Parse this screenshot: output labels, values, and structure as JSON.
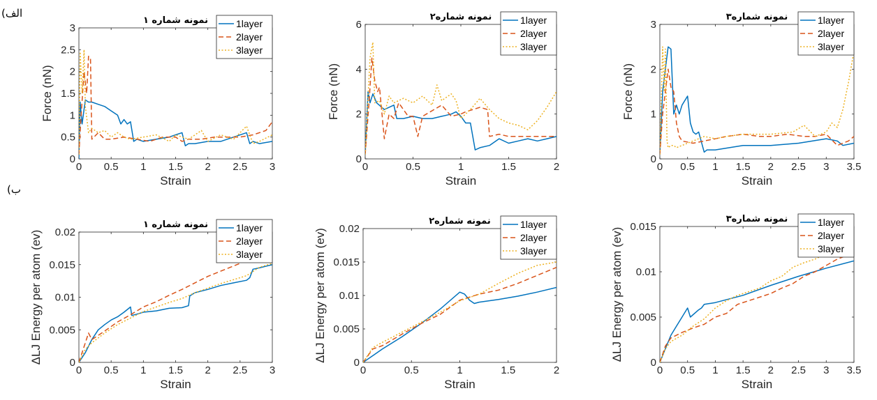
{
  "row_labels": {
    "a": "(الف",
    "b": "(ب"
  },
  "colors": {
    "layer1": "#0072BD",
    "layer2": "#D95319",
    "layer3": "#EDB120"
  },
  "chart_data": [
    {
      "type": "line",
      "title": "نمونه شماره ۱",
      "xlabel": "Strain",
      "ylabel": "Force (nN)",
      "xlim": [
        0,
        3
      ],
      "ylim": [
        0,
        3
      ],
      "xticks": [
        "0",
        "0.5",
        "1",
        "1.5",
        "2",
        "2.5",
        "3"
      ],
      "xtickvals": [
        0,
        0.5,
        1,
        1.5,
        2,
        2.5,
        3
      ],
      "yticks": [
        "0",
        "0.5",
        "1",
        "1.5",
        "2",
        "2.5",
        "3"
      ],
      "ytickvals": [
        0,
        0.5,
        1,
        1.5,
        2,
        2.5,
        3
      ],
      "legend": "top-right",
      "series": [
        {
          "name": "1layer",
          "x": [
            0,
            0.02,
            0.05,
            0.1,
            0.15,
            0.2,
            0.3,
            0.4,
            0.5,
            0.6,
            0.65,
            0.7,
            0.75,
            0.8,
            0.85,
            0.9,
            1.0,
            1.2,
            1.4,
            1.6,
            1.65,
            1.7,
            1.8,
            2.0,
            2.2,
            2.4,
            2.6,
            2.65,
            2.7,
            2.8,
            3.0
          ],
          "y": [
            0,
            1.3,
            0.8,
            1.35,
            1.3,
            1.3,
            1.25,
            1.2,
            1.1,
            1.0,
            0.8,
            0.9,
            0.8,
            0.85,
            0.4,
            0.45,
            0.4,
            0.45,
            0.5,
            0.6,
            0.3,
            0.35,
            0.35,
            0.4,
            0.4,
            0.5,
            0.6,
            0.35,
            0.4,
            0.35,
            0.4
          ]
        },
        {
          "name": "2layer",
          "x": [
            0,
            0.03,
            0.08,
            0.12,
            0.15,
            0.18,
            0.2,
            0.3,
            0.4,
            0.5,
            0.7,
            0.9,
            1.1,
            1.3,
            1.5,
            1.6,
            1.7,
            1.9,
            2.1,
            2.3,
            2.5,
            2.7,
            2.9,
            3.0
          ],
          "y": [
            0.1,
            0.9,
            2.0,
            1.5,
            2.35,
            2.3,
            0.45,
            0.6,
            0.45,
            0.45,
            0.5,
            0.45,
            0.4,
            0.5,
            0.5,
            0.4,
            0.45,
            0.45,
            0.5,
            0.5,
            0.5,
            0.55,
            0.65,
            0.85
          ]
        },
        {
          "name": "3layer",
          "x": [
            0,
            0.02,
            0.05,
            0.08,
            0.1,
            0.15,
            0.2,
            0.3,
            0.4,
            0.5,
            0.6,
            0.7,
            0.8,
            1.0,
            1.2,
            1.4,
            1.5,
            1.7,
            1.9,
            2.0,
            2.2,
            2.4,
            2.5,
            2.6,
            2.7,
            2.8,
            3.0
          ],
          "y": [
            0.1,
            2.45,
            1.5,
            2.5,
            1.2,
            0.6,
            0.7,
            0.6,
            0.65,
            0.5,
            0.6,
            0.5,
            0.45,
            0.5,
            0.55,
            0.4,
            0.55,
            0.45,
            0.65,
            0.4,
            0.55,
            0.45,
            0.6,
            0.75,
            0.35,
            0.4,
            0.55
          ]
        }
      ]
    },
    {
      "type": "line",
      "title": "نمونه شماره۲",
      "xlabel": "Strain",
      "ylabel": "Force (nN)",
      "xlim": [
        0,
        2
      ],
      "ylim": [
        0,
        6
      ],
      "xticks": [
        "0",
        "0.5",
        "1",
        "1.5",
        "2"
      ],
      "xtickvals": [
        0,
        0.5,
        1,
        1.5,
        2
      ],
      "yticks": [
        "0",
        "2",
        "4",
        "6"
      ],
      "ytickvals": [
        0,
        2,
        4,
        6
      ],
      "legend": "top-right",
      "series": [
        {
          "name": "1layer",
          "x": [
            0,
            0.03,
            0.05,
            0.08,
            0.12,
            0.2,
            0.3,
            0.33,
            0.4,
            0.5,
            0.6,
            0.7,
            0.8,
            0.9,
            0.95,
            1.0,
            1.05,
            1.1,
            1.15,
            1.2,
            1.3,
            1.4,
            1.5,
            1.6,
            1.7,
            1.8,
            1.9,
            2.0
          ],
          "y": [
            0.2,
            3.0,
            2.5,
            2.9,
            2.5,
            2.2,
            2.4,
            1.8,
            1.8,
            1.9,
            1.8,
            1.8,
            1.9,
            2.0,
            2.1,
            1.9,
            1.6,
            1.6,
            0.4,
            0.5,
            0.6,
            0.9,
            0.7,
            0.8,
            0.9,
            0.8,
            0.9,
            1.0
          ]
        },
        {
          "name": "2layer",
          "x": [
            0,
            0.04,
            0.07,
            0.1,
            0.13,
            0.15,
            0.2,
            0.25,
            0.3,
            0.35,
            0.45,
            0.5,
            0.55,
            0.6,
            0.8,
            0.9,
            1.0,
            1.05,
            1.2,
            1.28,
            1.3,
            1.4,
            1.5,
            1.6,
            1.8,
            2.0
          ],
          "y": [
            0.2,
            2.5,
            4.5,
            3.5,
            3.0,
            3.2,
            0.9,
            2.0,
            1.8,
            2.5,
            1.9,
            1.9,
            1.0,
            1.9,
            2.4,
            1.9,
            2.0,
            2.1,
            2.3,
            2.2,
            1.0,
            1.1,
            1.0,
            1.0,
            1.0,
            1.0
          ]
        },
        {
          "name": "3layer",
          "x": [
            0,
            0.05,
            0.08,
            0.1,
            0.15,
            0.2,
            0.25,
            0.3,
            0.4,
            0.5,
            0.6,
            0.7,
            0.75,
            0.8,
            0.9,
            0.95,
            1.0,
            1.1,
            1.2,
            1.3,
            1.4,
            1.5,
            1.6,
            1.7,
            1.8,
            1.9,
            2.0
          ],
          "y": [
            0.2,
            4.5,
            5.2,
            2.5,
            2.6,
            2.0,
            2.8,
            2.5,
            2.7,
            2.5,
            2.8,
            2.4,
            3.3,
            2.6,
            2.9,
            2.6,
            1.8,
            2.2,
            2.7,
            2.2,
            1.8,
            1.6,
            1.5,
            1.3,
            1.7,
            2.3,
            3.0
          ]
        }
      ]
    },
    {
      "type": "line",
      "title": "نمونه شماره۳",
      "xlabel": "Strain",
      "ylabel": "Force (nN)",
      "xlim": [
        0,
        3.5
      ],
      "ylim": [
        0,
        3
      ],
      "xticks": [
        "0",
        "0.5",
        "1",
        "1.5",
        "2",
        "2.5",
        "3",
        "3.5"
      ],
      "xtickvals": [
        0,
        0.5,
        1,
        1.5,
        2,
        2.5,
        3,
        3.5
      ],
      "yticks": [
        "0",
        "1",
        "2",
        "3"
      ],
      "ytickvals": [
        0,
        1,
        2,
        3
      ],
      "legend": "top-right",
      "series": [
        {
          "name": "1layer",
          "x": [
            0,
            0.05,
            0.1,
            0.15,
            0.2,
            0.25,
            0.3,
            0.35,
            0.4,
            0.5,
            0.55,
            0.6,
            0.65,
            0.7,
            0.8,
            0.85,
            1.0,
            1.5,
            2.0,
            2.5,
            3.0,
            3.2,
            3.3,
            3.5
          ],
          "y": [
            0.1,
            1.5,
            2.0,
            2.5,
            2.45,
            1.0,
            1.2,
            1.0,
            1.2,
            1.4,
            0.8,
            0.6,
            0.55,
            0.6,
            0.15,
            0.2,
            0.2,
            0.3,
            0.3,
            0.35,
            0.45,
            0.4,
            0.3,
            0.35
          ]
        },
        {
          "name": "2layer",
          "x": [
            0,
            0.05,
            0.1,
            0.15,
            0.2,
            0.25,
            0.3,
            0.35,
            0.4,
            0.6,
            0.8,
            1.0,
            1.2,
            1.5,
            1.8,
            2.0,
            2.3,
            2.6,
            2.8,
            3.0,
            3.2,
            3.4,
            3.5
          ],
          "y": [
            0.1,
            1.0,
            1.5,
            2.0,
            1.6,
            1.5,
            0.8,
            0.5,
            0.4,
            0.35,
            0.4,
            0.45,
            0.5,
            0.55,
            0.5,
            0.5,
            0.55,
            0.5,
            0.5,
            0.55,
            0.3,
            0.4,
            0.5
          ]
        },
        {
          "name": "3layer",
          "x": [
            0,
            0.05,
            0.08,
            0.1,
            0.13,
            0.15,
            0.2,
            0.25,
            0.3,
            0.4,
            0.6,
            0.8,
            1.0,
            1.2,
            1.5,
            2.0,
            2.4,
            2.6,
            2.8,
            3.0,
            3.1,
            3.2,
            3.3,
            3.4,
            3.5
          ],
          "y": [
            0.1,
            2.5,
            1.5,
            2.45,
            0.4,
            0.25,
            0.3,
            0.3,
            0.25,
            0.3,
            0.4,
            0.5,
            0.45,
            0.5,
            0.55,
            0.55,
            0.6,
            0.75,
            0.5,
            0.6,
            0.8,
            0.7,
            1.1,
            1.7,
            2.4
          ]
        }
      ]
    },
    {
      "type": "line",
      "title": "نمونه شماره ۱",
      "xlabel": "Strain",
      "ylabel": "ΔLJ Energy per atom (ev)",
      "xlim": [
        0,
        3
      ],
      "ylim": [
        0,
        0.02
      ],
      "xticks": [
        "0",
        "0.5",
        "1",
        "1.5",
        "2",
        "2.5",
        "3"
      ],
      "xtickvals": [
        0,
        0.5,
        1,
        1.5,
        2,
        2.5,
        3
      ],
      "yticks": [
        "0",
        "0.005",
        "0.01",
        "0.015",
        "0.02"
      ],
      "ytickvals": [
        0,
        0.005,
        0.01,
        0.015,
        0.02
      ],
      "legend": "top-right",
      "series": [
        {
          "name": "1layer",
          "x": [
            0,
            0.1,
            0.2,
            0.3,
            0.4,
            0.5,
            0.6,
            0.7,
            0.8,
            0.82,
            0.9,
            1.0,
            1.2,
            1.4,
            1.6,
            1.7,
            1.72,
            1.8,
            2.0,
            2.2,
            2.4,
            2.6,
            2.65,
            2.7,
            2.8,
            3.0
          ],
          "y": [
            0,
            0.0015,
            0.0035,
            0.005,
            0.0058,
            0.0065,
            0.007,
            0.0077,
            0.0085,
            0.0072,
            0.0074,
            0.0077,
            0.0079,
            0.0083,
            0.0084,
            0.0087,
            0.0102,
            0.0107,
            0.0112,
            0.0118,
            0.0122,
            0.0126,
            0.013,
            0.0143,
            0.0145,
            0.015
          ]
        },
        {
          "name": "2layer",
          "x": [
            0,
            0.1,
            0.15,
            0.2,
            0.4,
            0.6,
            0.8,
            1.0,
            1.2,
            1.4,
            1.6,
            1.8,
            2.0,
            2.2,
            2.4,
            2.5,
            2.6,
            2.8,
            3.0
          ],
          "y": [
            0,
            0.003,
            0.0045,
            0.0035,
            0.0048,
            0.0062,
            0.0073,
            0.0085,
            0.0093,
            0.0103,
            0.0112,
            0.0122,
            0.0132,
            0.014,
            0.0148,
            0.0152,
            0.016,
            0.0163,
            0.0165
          ]
        },
        {
          "name": "3layer",
          "x": [
            0,
            0.1,
            0.2,
            0.4,
            0.6,
            0.8,
            1.0,
            1.2,
            1.4,
            1.6,
            1.8,
            2.0,
            2.2,
            2.4,
            2.6,
            2.8,
            3.0
          ],
          "y": [
            0,
            0.002,
            0.003,
            0.0045,
            0.0058,
            0.0068,
            0.0078,
            0.0085,
            0.0092,
            0.0098,
            0.0107,
            0.0114,
            0.0121,
            0.0127,
            0.0133,
            0.0146,
            0.0152
          ]
        }
      ]
    },
    {
      "type": "line",
      "title": "نمونه شماره۲",
      "xlabel": "Strain",
      "ylabel": "ΔLJ Energy per atom (ev)",
      "xlim": [
        0,
        2
      ],
      "ylim": [
        0,
        0.02
      ],
      "xticks": [
        "0",
        "0.5",
        "1",
        "1.5",
        "2"
      ],
      "xtickvals": [
        0,
        0.5,
        1,
        1.5,
        2
      ],
      "yticks": [
        "0",
        "0.005",
        "0.01",
        "0.015",
        "0.02"
      ],
      "ytickvals": [
        0,
        0.005,
        0.01,
        0.015,
        0.02
      ],
      "legend": "top-right",
      "series": [
        {
          "name": "1layer",
          "x": [
            0,
            0.1,
            0.2,
            0.4,
            0.6,
            0.8,
            1.0,
            1.05,
            1.1,
            1.15,
            1.2,
            1.4,
            1.6,
            1.8,
            2.0
          ],
          "y": [
            0,
            0.001,
            0.002,
            0.0038,
            0.0058,
            0.008,
            0.0105,
            0.0102,
            0.0093,
            0.0088,
            0.009,
            0.0094,
            0.0099,
            0.0105,
            0.0112
          ]
        },
        {
          "name": "2layer",
          "x": [
            0,
            0.1,
            0.2,
            0.4,
            0.6,
            0.8,
            1.0,
            1.2,
            1.4,
            1.6,
            1.8,
            2.0
          ],
          "y": [
            0,
            0.002,
            0.0025,
            0.0042,
            0.0058,
            0.0072,
            0.0093,
            0.0102,
            0.0108,
            0.0118,
            0.013,
            0.0142
          ]
        },
        {
          "name": "3layer",
          "x": [
            0,
            0.1,
            0.2,
            0.4,
            0.6,
            0.8,
            1.0,
            1.2,
            1.4,
            1.6,
            1.8,
            2.0
          ],
          "y": [
            0,
            0.0022,
            0.003,
            0.0045,
            0.006,
            0.0075,
            0.0092,
            0.0102,
            0.0118,
            0.0133,
            0.0145,
            0.015
          ]
        }
      ]
    },
    {
      "type": "line",
      "title": "نمونه شماره۳",
      "xlabel": "Strain",
      "ylabel": "ΔLJ Energy per atom (ev)",
      "xlim": [
        0,
        3.5
      ],
      "ylim": [
        0,
        0.015
      ],
      "xticks": [
        "0",
        "0.5",
        "1",
        "1.5",
        "2",
        "2.5",
        "3",
        "3.5"
      ],
      "xtickvals": [
        0,
        0.5,
        1,
        1.5,
        2,
        2.5,
        3,
        3.5
      ],
      "yticks": [
        "0",
        "0.005",
        "0.01",
        "0.015"
      ],
      "ytickvals": [
        0,
        0.005,
        0.01,
        0.015
      ],
      "legend": "top-right",
      "series": [
        {
          "name": "1layer",
          "x": [
            0,
            0.1,
            0.2,
            0.3,
            0.4,
            0.5,
            0.55,
            0.7,
            0.75,
            0.8,
            1.0,
            1.5,
            2.0,
            2.5,
            3.0,
            3.5
          ],
          "y": [
            0,
            0.0015,
            0.003,
            0.004,
            0.005,
            0.006,
            0.005,
            0.0058,
            0.006,
            0.0064,
            0.0066,
            0.0074,
            0.0085,
            0.0095,
            0.0104,
            0.0112
          ]
        },
        {
          "name": "2layer",
          "x": [
            0,
            0.1,
            0.2,
            0.4,
            0.6,
            0.8,
            1.0,
            1.2,
            1.4,
            1.6,
            1.8,
            2.0,
            2.2,
            2.4,
            2.6,
            2.8,
            3.0,
            3.2,
            3.5
          ],
          "y": [
            0,
            0.0018,
            0.0027,
            0.0033,
            0.0038,
            0.0042,
            0.005,
            0.0054,
            0.0064,
            0.0068,
            0.0072,
            0.0076,
            0.0082,
            0.0087,
            0.0095,
            0.01,
            0.0107,
            0.0114,
            0.0121
          ]
        },
        {
          "name": "3layer",
          "x": [
            0,
            0.1,
            0.2,
            0.4,
            0.6,
            0.8,
            1.0,
            1.2,
            1.4,
            1.6,
            1.8,
            2.0,
            2.2,
            2.4,
            2.6,
            2.8,
            3.0,
            3.2,
            3.5
          ],
          "y": [
            0,
            0.0015,
            0.0023,
            0.003,
            0.004,
            0.0048,
            0.006,
            0.0068,
            0.0074,
            0.0078,
            0.0082,
            0.009,
            0.0095,
            0.0105,
            0.011,
            0.0114,
            0.012,
            0.0125,
            0.013
          ]
        }
      ]
    }
  ]
}
